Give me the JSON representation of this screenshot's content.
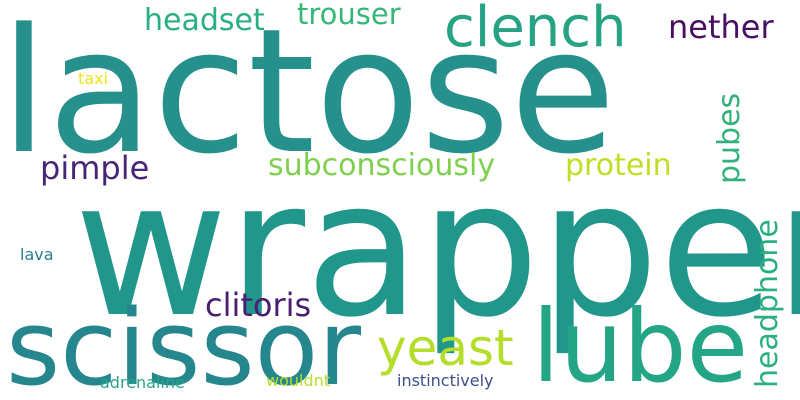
{
  "words": {
    "lactose": "lactose",
    "wrapper": "wrapper",
    "scissor": "scissor",
    "lube": "lube",
    "clench": "clench",
    "yeast": "yeast",
    "headset": "headset",
    "trouser": "trouser",
    "nether": "nether",
    "pimple": "pimple",
    "subconsciously": "subconsciously",
    "protein": "protein",
    "pubes": "pubes",
    "headphone": "headphone",
    "clitoris": "clitoris",
    "taxi": "taxi",
    "lava": "lava",
    "adrenaline": "adrenaline",
    "wouldnt": "wouldnt",
    "instinctively": "instinctively"
  },
  "colors": {
    "lactose": "#26918c",
    "wrapper": "#21978b",
    "scissor": "#25868e",
    "lube": "#23a586",
    "clench": "#26a383",
    "yeast": "#b5de2b",
    "headset": "#2ab07f",
    "trouser": "#36b677",
    "nether": "#471063",
    "pimple": "#482677",
    "subconsciously": "#80d04f",
    "protein": "#bedf26",
    "pubes": "#30b27a",
    "headphone": "#2ab07f",
    "clitoris": "#481e70",
    "taxi": "#e8e519",
    "lava": "#2e7d8e",
    "adrenaline": "#2aa486",
    "wouldnt": "#b5de2b",
    "instinctively": "#3c4f8a"
  }
}
